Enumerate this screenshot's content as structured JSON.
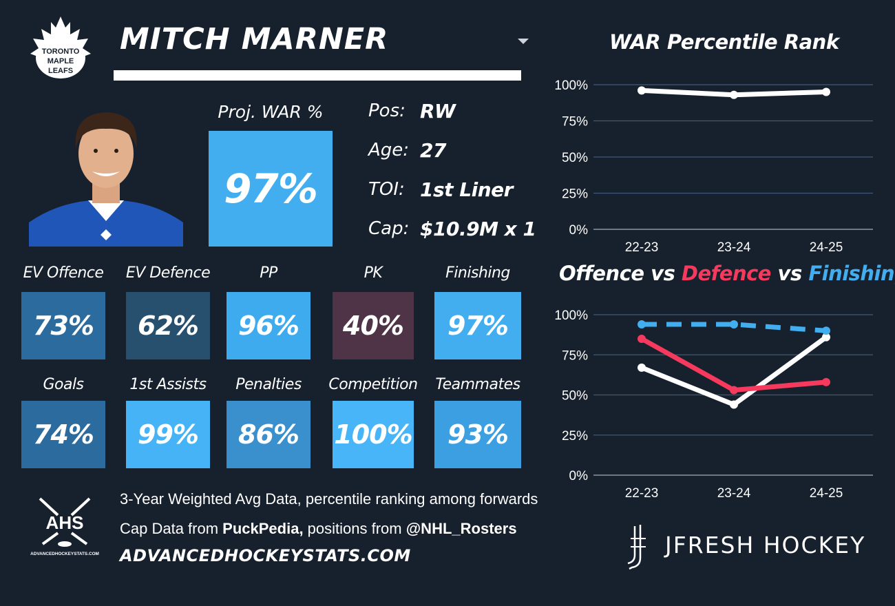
{
  "player": {
    "name": "MITCH MARNER",
    "team_logo_lines": [
      "TORONTO",
      "MAPLE",
      "LEAFS"
    ],
    "proj_war_label": "Proj. WAR %",
    "proj_war_value": "97%",
    "info": [
      {
        "label": "Pos:",
        "value": "RW"
      },
      {
        "label": "Age:",
        "value": "27"
      },
      {
        "label": "TOI:",
        "value": "1st Liner"
      },
      {
        "label": "Cap:",
        "value": "$10.9M x 1"
      }
    ]
  },
  "tiles_row1": [
    {
      "label": "EV Offence",
      "value": "73%",
      "color": "#2c6b9d"
    },
    {
      "label": "EV Defence",
      "value": "62%",
      "color": "#27506f"
    },
    {
      "label": "PP",
      "value": "96%",
      "color": "#3fabef"
    },
    {
      "label": "PK",
      "value": "40%",
      "color": "#4e3446"
    },
    {
      "label": "Finishing",
      "value": "97%",
      "color": "#42aef0"
    }
  ],
  "tiles_row2": [
    {
      "label": "Goals",
      "value": "74%",
      "color": "#2c6b9d"
    },
    {
      "label": "1st Assists",
      "value": "99%",
      "color": "#46b3f6"
    },
    {
      "label": "Penalties",
      "value": "86%",
      "color": "#3a8fcd"
    },
    {
      "label": "Competition",
      "value": "100%",
      "color": "#47b5f8"
    },
    {
      "label": "Teammates",
      "value": "93%",
      "color": "#3c9fe1"
    }
  ],
  "footer": {
    "ahs_logo_text": "AHS",
    "ahs_logo_small": "ADVANCEDHOCKEYSTATS.COM",
    "line1": "3-Year Weighted Avg Data, percentile ranking among forwards",
    "line2_prefix": "Cap Data from ",
    "line2_source1": "PuckPedia,",
    "line2_middle": " positions from ",
    "line2_source2": "@NHL_Rosters",
    "site": "ADVANCEDHOCKEYSTATS.COM",
    "brand": "JFRESH HOCKEY"
  },
  "chart_titles": {
    "war_title": "WAR Percentile Rank",
    "odf_title_parts": [
      {
        "text": "Offence",
        "color": "#ffffff"
      },
      {
        "text": " vs ",
        "color": "#ffffff"
      },
      {
        "text": "Defence",
        "color": "#f53a5d"
      },
      {
        "text": " vs ",
        "color": "#ffffff"
      },
      {
        "text": "Finishing",
        "color": "#42aef0"
      }
    ]
  },
  "chart_data": [
    {
      "type": "line",
      "title": "WAR Percentile Rank",
      "x": [
        "22-23",
        "23-24",
        "24-25"
      ],
      "yticks": [
        "0%",
        "25%",
        "50%",
        "75%",
        "100%"
      ],
      "ylim": [
        0,
        100
      ],
      "grid": true,
      "series": [
        {
          "values": [
            96,
            93,
            95
          ],
          "color": "#ffffff",
          "dash": false
        }
      ]
    },
    {
      "type": "line",
      "title": "Offence vs Defence vs Finishing",
      "x": [
        "22-23",
        "23-24",
        "24-25"
      ],
      "yticks": [
        "0%",
        "25%",
        "50%",
        "75%",
        "100%"
      ],
      "ylim": [
        0,
        100
      ],
      "grid": true,
      "series": [
        {
          "name": "Offence",
          "values": [
            67,
            44,
            86
          ],
          "color": "#ffffff",
          "dash": false
        },
        {
          "name": "Defence",
          "values": [
            85,
            53,
            58
          ],
          "color": "#f53a5d",
          "dash": false
        },
        {
          "name": "Finishing",
          "values": [
            94,
            94,
            90
          ],
          "color": "#42aef0",
          "dash": true
        }
      ]
    }
  ]
}
